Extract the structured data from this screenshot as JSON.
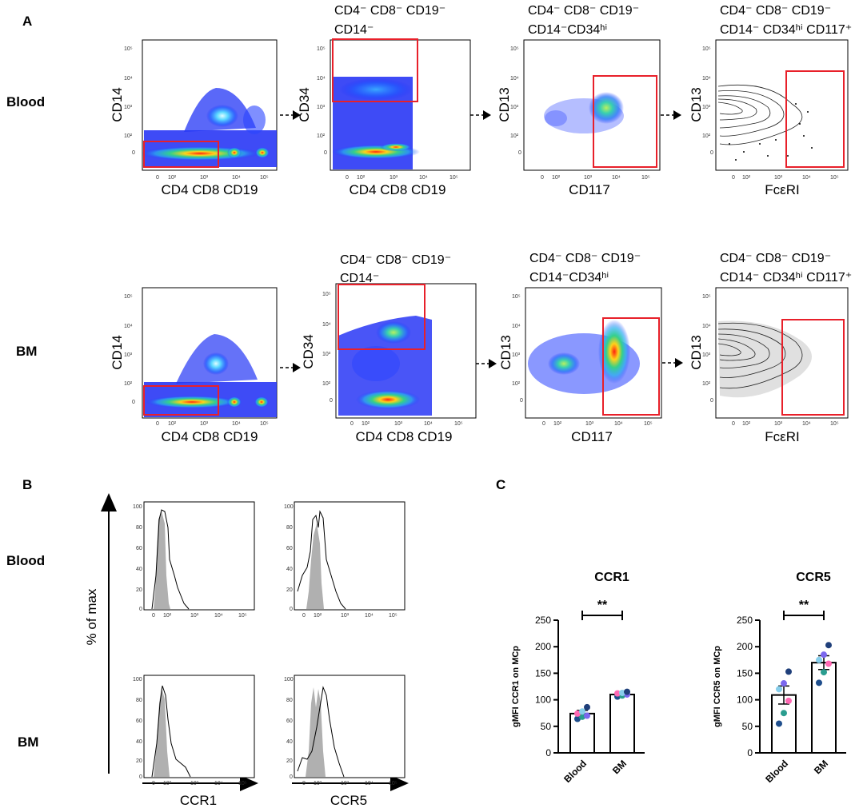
{
  "panel_labels": {
    "a": "A",
    "b": "B",
    "c": "C"
  },
  "rows": {
    "blood": "Blood",
    "bm": "BM"
  },
  "gating": {
    "log_ticks": [
      "10⁵",
      "10⁴",
      "10³",
      "10²",
      "0"
    ],
    "x_ticks": [
      "0",
      "10²",
      "10³",
      "10⁴",
      "10⁵"
    ],
    "plots": [
      {
        "xlabel": "CD4 CD8 CD19",
        "ylabel": "CD14",
        "title_line1": "",
        "title_line2": ""
      },
      {
        "xlabel": "CD4 CD8 CD19",
        "ylabel": "CD34",
        "title_line1": "CD4⁻ CD8⁻ CD19⁻",
        "title_line2": "CD14⁻"
      },
      {
        "xlabel": "CD117",
        "ylabel": "CD13",
        "title_line1": "CD4⁻ CD8⁻ CD19⁻",
        "title_line2": "CD14⁻CD34ʰⁱ"
      },
      {
        "xlabel": "FcεRI",
        "ylabel": "CD13",
        "title_line1": "CD4⁻ CD8⁻ CD19⁻",
        "title_line2": "CD14⁻ CD34ʰⁱ CD117⁺"
      }
    ]
  },
  "histograms": {
    "yaxis_label": "% of max",
    "y_ticks": [
      "100",
      "80",
      "60",
      "40",
      "20",
      "0"
    ],
    "x_ticks": [
      "0",
      "10²",
      "10³",
      "10⁴",
      "10⁵"
    ],
    "columns": [
      "CCR1",
      "CCR5"
    ]
  },
  "chart_data": [
    {
      "type": "bar",
      "title": "CCR1",
      "categories": [
        "Blood",
        "BM"
      ],
      "values": [
        74,
        110
      ],
      "sem": [
        6,
        3
      ],
      "points": [
        [
          64,
          68,
          70,
          74,
          78,
          86
        ],
        [
          106,
          108,
          110,
          112,
          113,
          115
        ]
      ],
      "point_colors": [
        "#1f4e8c",
        "#2a9d8f",
        "#7b68ee",
        "#ff69b4",
        "#87ceeb",
        "#1f3f7a"
      ],
      "ylabel": "gMFI CCR1 on MCp",
      "ylim": [
        0,
        250
      ],
      "yticks": [
        0,
        50,
        100,
        150,
        200,
        250
      ],
      "significance": "**"
    },
    {
      "type": "bar",
      "title": "CCR5",
      "categories": [
        "Blood",
        "BM"
      ],
      "values": [
        109,
        170
      ],
      "sem": [
        17,
        13
      ],
      "points": [
        [
          55,
          75,
          98,
          120,
          131,
          153
        ],
        [
          132,
          152,
          168,
          175,
          185,
          203
        ]
      ],
      "point_colors": [
        "#1f4e8c",
        "#2a9d8f",
        "#ff69b4",
        "#87ceeb",
        "#7b68ee",
        "#1f3f7a"
      ],
      "ylabel": "gMFI CCR5 on MCp",
      "ylim": [
        0,
        250
      ],
      "yticks": [
        0,
        50,
        100,
        150,
        200,
        250
      ],
      "significance": "**"
    }
  ]
}
